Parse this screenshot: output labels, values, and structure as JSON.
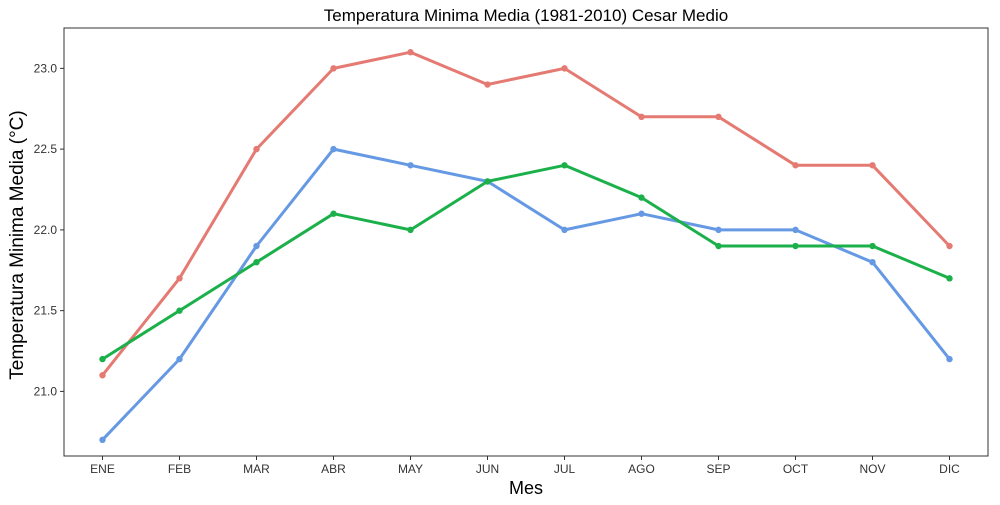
{
  "chart_data": {
    "type": "line",
    "title": "Temperatura Minima Media (1981-2010)  Cesar Medio",
    "xlabel": "Mes",
    "ylabel": "Temperatura Minima Media  (°C)",
    "categories": [
      "ENE",
      "FEB",
      "MAR",
      "ABR",
      "MAY",
      "JUN",
      "JUL",
      "AGO",
      "SEP",
      "OCT",
      "NOV",
      "DIC"
    ],
    "ylim": [
      20.6,
      23.25
    ],
    "yticks": [
      "21.0",
      "21.5",
      "22.0",
      "22.5",
      "23.0"
    ],
    "grid": false,
    "legend": "none",
    "series": [
      {
        "color": "#e57a73",
        "values": [
          21.1,
          21.7,
          22.5,
          23.0,
          23.1,
          22.9,
          23.0,
          22.7,
          22.7,
          22.4,
          22.4,
          21.9
        ]
      },
      {
        "color": "#6699e3",
        "values": [
          20.7,
          21.2,
          21.9,
          22.5,
          22.4,
          22.3,
          22.0,
          22.1,
          22.0,
          22.0,
          21.8,
          21.2
        ]
      },
      {
        "color": "#1bb04a",
        "values": [
          21.2,
          21.5,
          21.8,
          22.1,
          22.0,
          22.3,
          22.4,
          22.2,
          21.9,
          21.9,
          21.9,
          21.7
        ]
      }
    ]
  }
}
